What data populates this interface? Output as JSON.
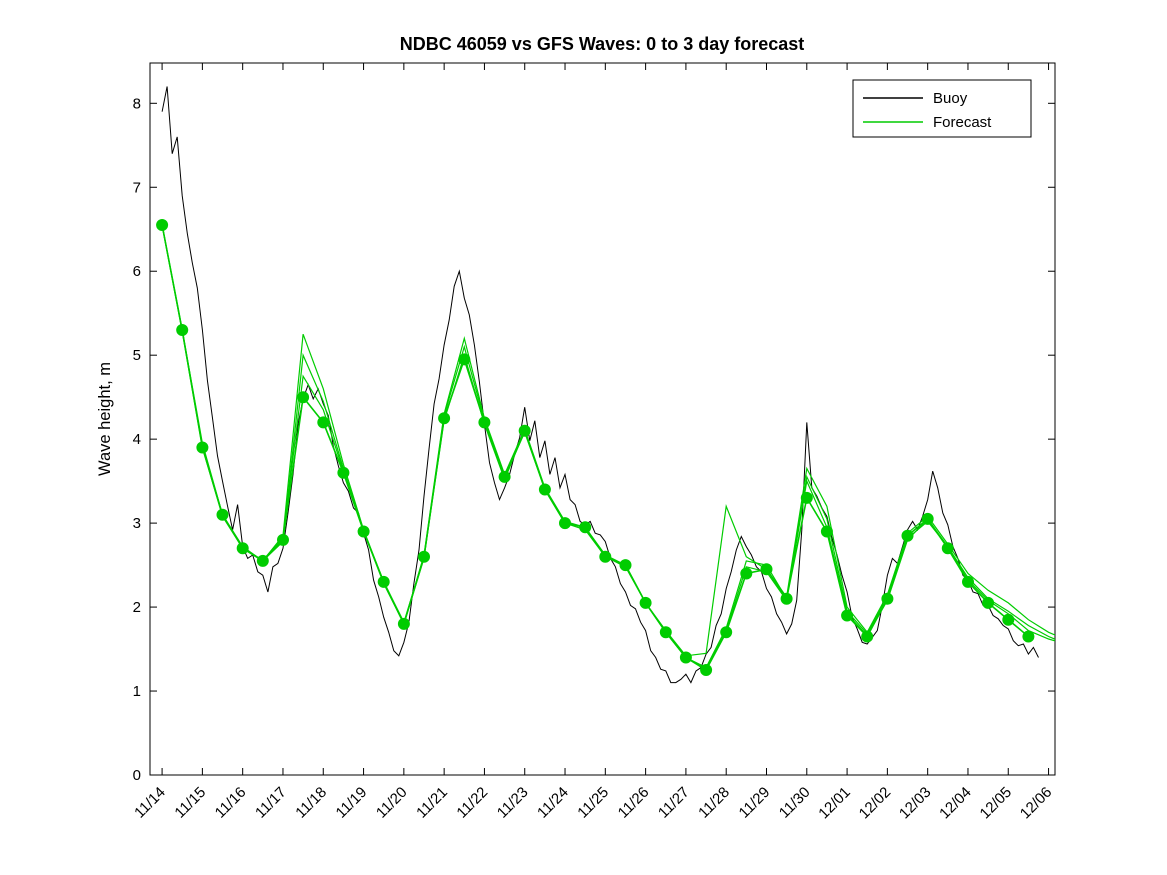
{
  "chart_data": {
    "type": "line",
    "title": "NDBC 46059 vs GFS Waves: 0 to 3 day forecast",
    "xlabel": "",
    "ylabel": "Wave height, m",
    "ylim": [
      0,
      8.48
    ],
    "xlim_days": [
      -0.3,
      22.16
    ],
    "grid": false,
    "yticks": [
      0,
      1,
      2,
      3,
      4,
      5,
      6,
      7,
      8
    ],
    "xticks": {
      "days": [
        0,
        1,
        2,
        3,
        4,
        5,
        6,
        7,
        8,
        9,
        10,
        11,
        12,
        13,
        14,
        15,
        16,
        17,
        18,
        19,
        20,
        21,
        22
      ],
      "labels": [
        "11/14",
        "11/15",
        "11/16",
        "11/17",
        "11/18",
        "11/19",
        "11/20",
        "11/21",
        "11/22",
        "11/23",
        "11/24",
        "11/25",
        "11/26",
        "11/27",
        "11/28",
        "11/29",
        "11/30",
        "12/01",
        "12/02",
        "12/03",
        "12/04",
        "12/05",
        "12/06"
      ]
    },
    "legend": {
      "position": "top-right",
      "entries": [
        {
          "label": "Buoy",
          "color": "#000000"
        },
        {
          "label": "Forecast",
          "color": "#00cc00"
        }
      ]
    },
    "colors": {
      "buoy": "#000000",
      "forecast": "#00cc00",
      "axes": "#000000",
      "background": "#ffffff"
    },
    "series": [
      {
        "name": "buoy",
        "label": "Buoy",
        "color": "#000000",
        "width": 1,
        "marker": null,
        "t0": 0,
        "dt": 0.125,
        "values": [
          7.9,
          8.2,
          7.4,
          7.6,
          6.9,
          6.45,
          6.1,
          5.8,
          5.3,
          4.7,
          4.25,
          3.8,
          3.5,
          3.2,
          2.92,
          3.22,
          2.72,
          2.58,
          2.62,
          2.42,
          2.38,
          2.18,
          2.48,
          2.52,
          2.7,
          3.12,
          3.58,
          4.18,
          4.48,
          4.65,
          4.48,
          4.6,
          4.42,
          4.28,
          3.92,
          3.68,
          3.48,
          3.38,
          3.18,
          3.12,
          2.88,
          2.68,
          2.32,
          2.12,
          1.88,
          1.7,
          1.48,
          1.42,
          1.58,
          1.82,
          2.28,
          2.68,
          3.32,
          3.88,
          4.42,
          4.72,
          5.12,
          5.42,
          5.82,
          6.0,
          5.68,
          5.48,
          5.12,
          4.68,
          4.18,
          3.72,
          3.48,
          3.28,
          3.42,
          3.58,
          3.82,
          4.02,
          4.38,
          3.98,
          4.22,
          3.78,
          3.98,
          3.58,
          3.78,
          3.42,
          3.58,
          3.28,
          3.22,
          3.02,
          2.98,
          3.02,
          2.88,
          2.86,
          2.78,
          2.58,
          2.48,
          2.28,
          2.18,
          2.02,
          1.98,
          1.82,
          1.72,
          1.48,
          1.4,
          1.26,
          1.24,
          1.1,
          1.1,
          1.14,
          1.2,
          1.1,
          1.24,
          1.28,
          1.44,
          1.52,
          1.78,
          1.92,
          2.22,
          2.42,
          2.68,
          2.84,
          2.72,
          2.62,
          2.48,
          2.42,
          2.22,
          2.12,
          1.92,
          1.82,
          1.68,
          1.8,
          2.08,
          2.92,
          4.2,
          3.42,
          3.32,
          3.18,
          3.08,
          2.82,
          2.62,
          2.38,
          2.18,
          1.88,
          1.74,
          1.58,
          1.56,
          1.64,
          1.72,
          2.02,
          2.38,
          2.58,
          2.52,
          2.72,
          2.92,
          3.02,
          2.92,
          3.08,
          3.28,
          3.62,
          3.42,
          3.12,
          2.98,
          2.72,
          2.58,
          2.38,
          2.32,
          2.18,
          2.16,
          2.02,
          2.02,
          1.9,
          1.86,
          1.78,
          1.74,
          1.6,
          1.54,
          1.56,
          1.44,
          1.52,
          1.4
        ]
      },
      {
        "name": "forecast-run-1",
        "label": "Forecast run 1",
        "color": "#00cc00",
        "width": 1.2,
        "marker": null,
        "t0": 0,
        "dt": 0.5,
        "values": [
          6.55,
          5.3,
          3.95,
          3.1,
          2.72,
          2.55,
          2.85,
          5.25,
          4.6,
          3.7,
          2.92,
          2.3,
          1.8,
          2.62,
          4.3,
          5.2,
          4.25,
          3.58,
          4.12,
          3.42,
          3.02,
          2.95,
          2.62,
          2.5,
          2.05,
          1.72,
          1.42,
          1.45,
          3.2,
          2.6,
          2.45,
          2.12,
          3.65,
          3.2,
          2.0,
          1.7,
          2.15,
          2.88,
          3.08,
          2.75,
          2.4,
          2.2,
          2.05,
          1.85,
          1.7,
          1.6
        ]
      },
      {
        "name": "forecast-run-2",
        "label": "Forecast run 2",
        "color": "#00cc00",
        "width": 1.2,
        "marker": null,
        "t0": 0,
        "dt": 0.5,
        "values": [
          6.55,
          5.28,
          3.9,
          3.08,
          2.7,
          2.55,
          2.78,
          5.0,
          4.45,
          3.65,
          2.9,
          2.28,
          1.8,
          2.58,
          4.28,
          5.1,
          4.22,
          3.55,
          4.08,
          3.4,
          3.0,
          2.92,
          2.6,
          2.48,
          2.05,
          1.7,
          1.4,
          1.28,
          1.75,
          2.55,
          2.5,
          2.1,
          3.55,
          3.05,
          1.95,
          1.68,
          2.12,
          2.82,
          3.02,
          2.72,
          2.32,
          2.08,
          1.92,
          1.72,
          1.62,
          1.55
        ]
      },
      {
        "name": "forecast-run-3",
        "label": "Forecast run 3",
        "color": "#00cc00",
        "width": 1.2,
        "marker": null,
        "t0": 0,
        "dt": 0.5,
        "values": [
          6.55,
          5.3,
          3.92,
          3.1,
          2.7,
          2.56,
          2.82,
          4.75,
          4.35,
          3.62,
          2.9,
          2.3,
          1.82,
          2.6,
          4.22,
          5.0,
          4.18,
          3.52,
          4.1,
          3.4,
          3.0,
          2.95,
          2.6,
          2.5,
          2.05,
          1.7,
          1.4,
          1.26,
          1.72,
          2.48,
          2.42,
          2.08,
          3.5,
          2.95,
          1.92,
          1.66,
          2.08,
          2.8,
          3.05,
          2.72,
          2.35,
          2.1,
          1.95,
          1.78,
          1.65,
          1.55
        ]
      },
      {
        "name": "forecast-main",
        "label": "Forecast",
        "color": "#00cc00",
        "width": 1.6,
        "marker": "circle",
        "marker_size": 5.5,
        "t0": 0,
        "dt": 0.5,
        "values": [
          6.55,
          5.3,
          3.9,
          3.1,
          2.7,
          2.55,
          2.8,
          4.5,
          4.2,
          3.6,
          2.9,
          2.3,
          1.8,
          2.6,
          4.25,
          4.95,
          4.2,
          3.55,
          4.1,
          3.4,
          3.0,
          2.95,
          2.6,
          2.5,
          2.05,
          1.7,
          1.4,
          1.25,
          1.7,
          2.4,
          2.45,
          2.1,
          3.3,
          2.9,
          1.9,
          1.65,
          2.1,
          2.85,
          3.05,
          2.7,
          2.3,
          2.05,
          1.85,
          1.65
        ]
      }
    ]
  }
}
